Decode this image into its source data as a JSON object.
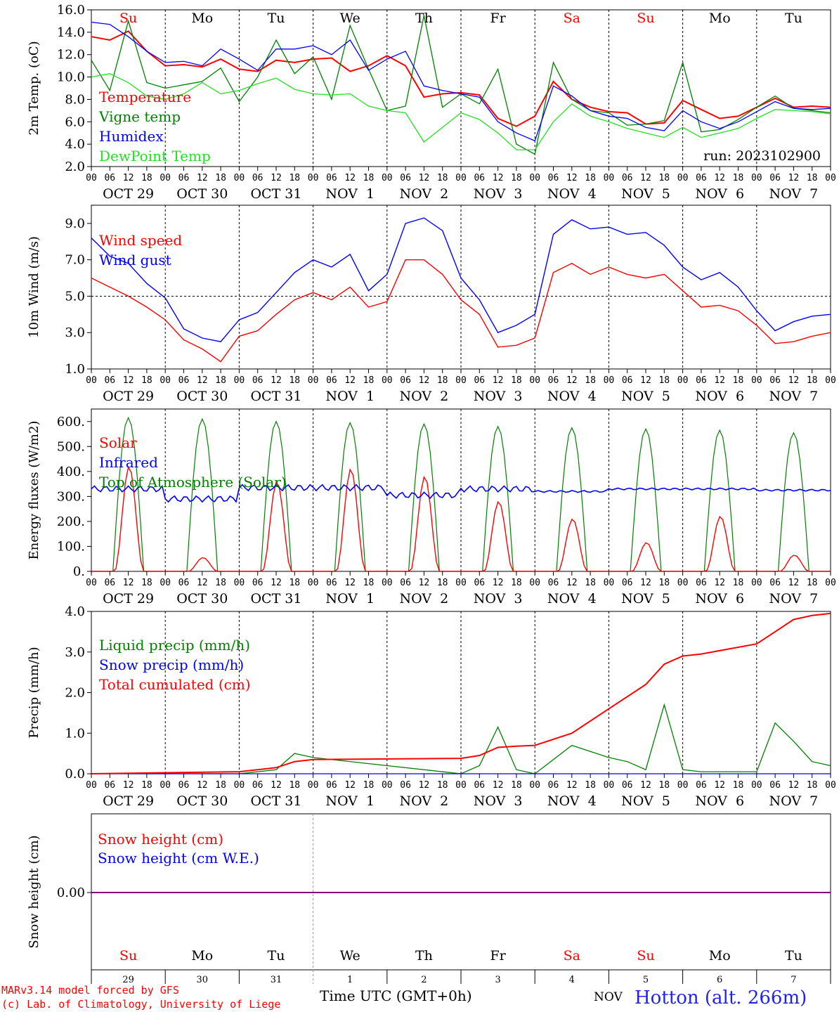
{
  "meteogram": {
    "run_label": "run: 2023102900",
    "hour_ticks": [
      "00",
      "06",
      "12",
      "18"
    ],
    "final_hour_tick": "00",
    "date_labels": [
      "OCT 29",
      "OCT 30",
      "OCT 31",
      "NOV  1",
      "NOV  2",
      "NOV  3",
      "NOV  4",
      "NOV  5",
      "NOV  6",
      "NOV  7"
    ],
    "weekdays": [
      "Su",
      "Mo",
      "Tu",
      "We",
      "Th",
      "Fr",
      "Sa",
      "Su",
      "Mo",
      "Tu"
    ],
    "weekend_days": [
      0,
      6,
      7
    ],
    "day_numbers": [
      "29",
      "30",
      "31",
      "1",
      "2",
      "3",
      "4",
      "5",
      "6",
      "7"
    ],
    "month_label": "NOV",
    "x_axis_label": "Time UTC (GMT+0h)",
    "station_label": "Hotton (alt. 266m)",
    "credit_lines": [
      "MARv3.14 model forced by GFS",
      "(c) Lab. of Climatology, University of Liege"
    ],
    "colors": {
      "red": "#ff0000",
      "green": "#008000",
      "blue": "#0000ff",
      "lightgreen": "#22e022",
      "purple": "#800080",
      "gray": "#555555"
    }
  },
  "chart_data": [
    {
      "type": "line",
      "ylabel": "2m Temp. (oC)",
      "ylim": [
        2.0,
        16.0
      ],
      "yticks": [
        "2.0",
        "4.0",
        "6.0",
        "8.0",
        "10.0",
        "12.0",
        "14.0",
        "16.0"
      ],
      "x_unit": "hours since Oct 29 00 UTC",
      "x": [
        0,
        6,
        12,
        18,
        24,
        30,
        36,
        42,
        48,
        54,
        60,
        66,
        72,
        78,
        84,
        90,
        96,
        102,
        108,
        114,
        120,
        126,
        132,
        138,
        144,
        150,
        156,
        162,
        168,
        174,
        180,
        186,
        192,
        198,
        204,
        210,
        216,
        222,
        228,
        234,
        240
      ],
      "series": [
        {
          "name": "Temperature",
          "color": "red",
          "values": [
            13.6,
            13.3,
            14.1,
            12.3,
            11.0,
            11.1,
            10.9,
            11.6,
            10.7,
            10.5,
            11.5,
            11.3,
            11.6,
            11.7,
            10.5,
            11.0,
            11.9,
            11.0,
            8.2,
            8.5,
            8.6,
            8.4,
            6.3,
            5.6,
            6.5,
            9.6,
            8.0,
            7.3,
            6.9,
            6.8,
            5.8,
            5.9,
            7.9,
            7.1,
            6.3,
            6.5,
            7.3,
            8.1,
            7.3,
            7.4,
            7.3
          ]
        },
        {
          "name": "Vigne temp",
          "color": "green",
          "values": [
            11.5,
            8.8,
            15.0,
            9.5,
            9.0,
            9.3,
            9.6,
            10.8,
            7.8,
            10.0,
            13.3,
            10.3,
            11.8,
            8.0,
            14.6,
            10.7,
            7.0,
            7.4,
            15.5,
            7.3,
            8.5,
            7.6,
            10.7,
            4.0,
            3.1,
            11.3,
            8.0,
            7.0,
            6.8,
            5.7,
            5.8,
            6.1,
            11.3,
            5.1,
            5.3,
            6.2,
            7.3,
            8.3,
            7.2,
            7.0,
            6.8
          ]
        },
        {
          "name": "Humidex",
          "color": "blue",
          "values": [
            14.9,
            14.7,
            13.6,
            12.3,
            11.3,
            11.4,
            11.0,
            12.5,
            11.6,
            10.6,
            12.5,
            12.5,
            12.8,
            12.0,
            13.3,
            10.6,
            11.6,
            12.3,
            9.2,
            8.8,
            8.5,
            8.2,
            6.0,
            5.0,
            4.3,
            9.2,
            8.3,
            7.0,
            6.5,
            6.3,
            5.5,
            5.2,
            7.0,
            6.0,
            5.4,
            6.0,
            6.9,
            7.8,
            7.2,
            7.1,
            7.2
          ]
        },
        {
          "name": "DewPoint Temp",
          "color": "lightgreen",
          "values": [
            10.0,
            10.3,
            9.5,
            8.3,
            8.0,
            8.5,
            9.5,
            8.5,
            8.8,
            9.4,
            9.9,
            8.9,
            8.5,
            8.4,
            8.5,
            7.4,
            7.0,
            6.8,
            4.2,
            5.5,
            6.8,
            6.2,
            5.0,
            3.5,
            3.5,
            6.0,
            7.6,
            6.5,
            6.0,
            5.4,
            5.0,
            4.6,
            5.5,
            4.6,
            5.0,
            5.4,
            6.3,
            7.1,
            7.0,
            6.9,
            6.7
          ]
        }
      ]
    },
    {
      "type": "line",
      "ylabel": "10m Wind (m/s)",
      "ylim": [
        1.0,
        10.0
      ],
      "yticks": [
        "1.0",
        "3.0",
        "5.0",
        "7.0",
        "9.0"
      ],
      "dashed_reference": 5.0,
      "x": [
        0,
        6,
        12,
        18,
        24,
        30,
        36,
        42,
        48,
        54,
        60,
        66,
        72,
        78,
        84,
        90,
        96,
        102,
        108,
        114,
        120,
        126,
        132,
        138,
        144,
        150,
        156,
        162,
        168,
        174,
        180,
        186,
        192,
        198,
        204,
        210,
        216,
        222,
        228,
        234,
        240
      ],
      "series": [
        {
          "name": "Wind speed",
          "color": "red",
          "values": [
            6.0,
            5.5,
            5.0,
            4.4,
            3.7,
            2.6,
            2.1,
            1.4,
            2.8,
            3.1,
            4.0,
            4.8,
            5.2,
            4.8,
            5.5,
            4.4,
            4.7,
            7.0,
            7.0,
            6.2,
            4.8,
            4.0,
            2.2,
            2.3,
            2.7,
            6.3,
            6.8,
            6.2,
            6.6,
            6.2,
            6.0,
            6.2,
            5.3,
            4.4,
            4.5,
            4.2,
            3.4,
            2.4,
            2.5,
            2.8,
            3.0
          ]
        },
        {
          "name": "Wind gust",
          "color": "blue",
          "values": [
            8.2,
            7.2,
            6.8,
            5.7,
            4.9,
            3.2,
            2.7,
            2.5,
            3.7,
            4.1,
            5.2,
            6.3,
            7.0,
            6.6,
            7.3,
            5.3,
            6.2,
            9.0,
            9.3,
            8.6,
            6.0,
            4.8,
            3.0,
            3.4,
            4.0,
            8.4,
            9.2,
            8.7,
            8.8,
            8.4,
            8.5,
            7.8,
            6.6,
            5.9,
            6.3,
            5.5,
            4.2,
            3.1,
            3.6,
            3.9,
            4.0
          ]
        }
      ]
    },
    {
      "type": "line",
      "ylabel": "Energy fluxes (W/m2)",
      "ylim": [
        0,
        650
      ],
      "yticks": [
        "0.",
        "100.",
        "200.",
        "300.",
        "400.",
        "500.",
        "600."
      ],
      "x_unit": "hours since Oct 29 00 UTC",
      "peaks": {
        "solar_peaks": [
          420,
          55,
          360,
          410,
          380,
          280,
          210,
          115,
          220,
          65
        ],
        "toa_peaks": [
          615,
          610,
          600,
          595,
          590,
          580,
          575,
          570,
          565,
          555
        ],
        "infrared_daily": [
          330,
          290,
          335,
          335,
          305,
          330,
          320,
          330,
          330,
          325
        ]
      },
      "series": [
        {
          "name": "Solar",
          "color": "red"
        },
        {
          "name": "Infrared",
          "color": "blue"
        },
        {
          "name": "Top of Atmosphere (Solar)",
          "color": "green"
        }
      ]
    },
    {
      "type": "line",
      "ylabel": "Precip (mm/h)",
      "ylim": [
        0,
        4.0
      ],
      "yticks": [
        "0.0",
        "1.0",
        "2.0",
        "3.0",
        "4.0"
      ],
      "x": [
        0,
        48,
        60,
        66,
        72,
        120,
        126,
        132,
        138,
        144,
        156,
        168,
        174,
        180,
        186,
        192,
        198,
        216,
        222,
        228,
        234,
        240
      ],
      "series": [
        {
          "name": "Liquid precip (mm/h)",
          "color": "green",
          "values": [
            0,
            0,
            0.1,
            0.5,
            0.4,
            0,
            0.2,
            1.15,
            0.1,
            0,
            0.7,
            0.4,
            0.3,
            0.1,
            1.7,
            0.1,
            0.05,
            0.05,
            1.25,
            0.8,
            0.3,
            0.2
          ]
        },
        {
          "name": "Snow precip (mm/h)",
          "color": "blue",
          "values": [
            0,
            0,
            0,
            0,
            0,
            0,
            0,
            0,
            0,
            0,
            0,
            0,
            0,
            0,
            0,
            0,
            0,
            0,
            0,
            0,
            0,
            0
          ]
        },
        {
          "name": "Total cumulated (cm)",
          "color": "red",
          "values": [
            0,
            0.05,
            0.15,
            0.3,
            0.35,
            0.38,
            0.45,
            0.65,
            0.68,
            0.7,
            1.0,
            1.6,
            1.9,
            2.2,
            2.7,
            2.9,
            2.95,
            3.2,
            3.5,
            3.8,
            3.9,
            3.95
          ]
        }
      ]
    },
    {
      "type": "line",
      "ylabel": "Snow height (cm)",
      "yticks": [
        "0.00"
      ],
      "series": [
        {
          "name": "Snow height (cm)",
          "color": "red",
          "values": [
            0
          ]
        },
        {
          "name": "Snow height (cm W.E.)",
          "color": "blue",
          "values": [
            0
          ]
        }
      ]
    }
  ]
}
